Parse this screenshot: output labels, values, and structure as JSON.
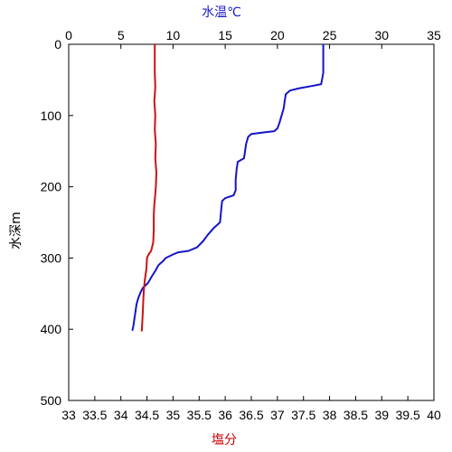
{
  "chart_data": {
    "type": "line",
    "title": "",
    "top_axis": {
      "label": "水温℃",
      "label_color": "#1a1acc",
      "range": [
        0,
        35
      ],
      "ticks": [
        "0",
        "5",
        "10",
        "15",
        "20",
        "25",
        "30",
        "35"
      ]
    },
    "bottom_axis": {
      "label": "塩分",
      "label_color": "#cc0000",
      "range": [
        33,
        40
      ],
      "ticks": [
        "33",
        "33.5",
        "34",
        "34.5",
        "35",
        "35.5",
        "36",
        "36.5",
        "37",
        "37.5",
        "38",
        "38.5",
        "39",
        "39.5",
        "40"
      ]
    },
    "y_axis": {
      "label": "水深m",
      "range": [
        0,
        500
      ],
      "inverted": true,
      "ticks": [
        "0",
        "100",
        "200",
        "300",
        "400",
        "500"
      ]
    },
    "grid": false,
    "series": [
      {
        "axis": "top",
        "color": "#1414c8",
        "points": [
          [
            24.4,
            0
          ],
          [
            24.4,
            20
          ],
          [
            24.4,
            40
          ],
          [
            24.2,
            56
          ],
          [
            23.5,
            58
          ],
          [
            22.0,
            62
          ],
          [
            21.2,
            65
          ],
          [
            20.8,
            70
          ],
          [
            20.7,
            80
          ],
          [
            20.6,
            90
          ],
          [
            20.4,
            100
          ],
          [
            20.2,
            110
          ],
          [
            20.0,
            118
          ],
          [
            19.7,
            122
          ],
          [
            18.5,
            124
          ],
          [
            17.5,
            126
          ],
          [
            17.2,
            130
          ],
          [
            17.0,
            140
          ],
          [
            16.9,
            150
          ],
          [
            16.8,
            160
          ],
          [
            16.2,
            165
          ],
          [
            16.1,
            175
          ],
          [
            16.0,
            190
          ],
          [
            16.0,
            205
          ],
          [
            15.8,
            212
          ],
          [
            15.0,
            216
          ],
          [
            14.7,
            220
          ],
          [
            14.6,
            235
          ],
          [
            14.5,
            250
          ],
          [
            13.9,
            258
          ],
          [
            13.3,
            268
          ],
          [
            12.9,
            276
          ],
          [
            12.3,
            285
          ],
          [
            11.5,
            290
          ],
          [
            10.5,
            292
          ],
          [
            10.0,
            295
          ],
          [
            9.3,
            300
          ],
          [
            9.0,
            305
          ],
          [
            8.6,
            310
          ],
          [
            8.3,
            318
          ],
          [
            8.0,
            325
          ],
          [
            7.6,
            335
          ],
          [
            7.1,
            342
          ],
          [
            6.9,
            348
          ],
          [
            6.7,
            355
          ],
          [
            6.5,
            365
          ],
          [
            6.4,
            375
          ],
          [
            6.3,
            385
          ],
          [
            6.2,
            395
          ],
          [
            6.1,
            402
          ]
        ]
      },
      {
        "axis": "bottom",
        "color": "#cc1111",
        "points": [
          [
            34.65,
            0
          ],
          [
            34.65,
            20
          ],
          [
            34.65,
            40
          ],
          [
            34.66,
            60
          ],
          [
            34.64,
            80
          ],
          [
            34.66,
            100
          ],
          [
            34.65,
            120
          ],
          [
            34.67,
            140
          ],
          [
            34.66,
            160
          ],
          [
            34.68,
            180
          ],
          [
            34.67,
            200
          ],
          [
            34.66,
            210
          ],
          [
            34.64,
            225
          ],
          [
            34.63,
            240
          ],
          [
            34.63,
            260
          ],
          [
            34.62,
            278
          ],
          [
            34.58,
            290
          ],
          [
            34.53,
            295
          ],
          [
            34.5,
            300
          ],
          [
            34.49,
            315
          ],
          [
            34.46,
            330
          ],
          [
            34.44,
            345
          ],
          [
            34.43,
            360
          ],
          [
            34.42,
            375
          ],
          [
            34.41,
            390
          ],
          [
            34.4,
            403
          ]
        ]
      }
    ]
  }
}
